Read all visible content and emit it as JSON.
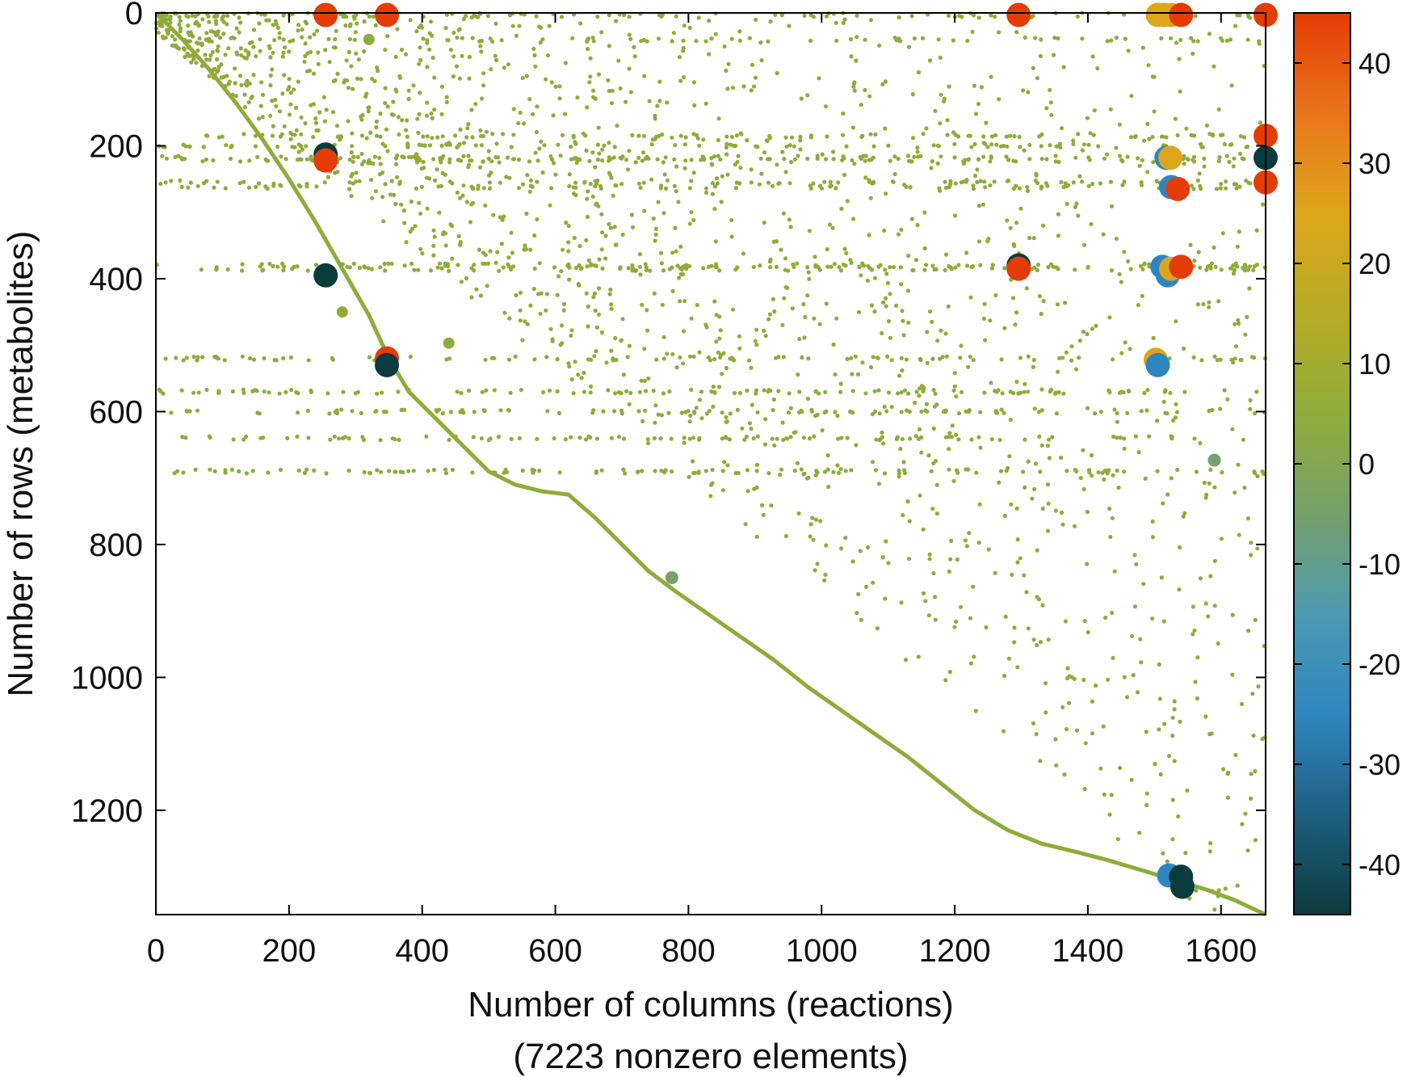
{
  "chart_data": {
    "type": "scatter",
    "title": "",
    "xlabel": "Number of columns (reactions)",
    "xlabel_line2": "(7223 nonzero elements)",
    "ylabel": "Number of rows (metabolites)",
    "xlim": [
      0,
      1667
    ],
    "ylim": [
      1357,
      0
    ],
    "x_ticks": [
      0,
      200,
      400,
      600,
      800,
      1000,
      1200,
      1400,
      1600
    ],
    "y_ticks": [
      0,
      200,
      400,
      600,
      800,
      1000,
      1200
    ],
    "colorbar": {
      "range": [
        -45,
        45
      ],
      "ticks": [
        40,
        30,
        20,
        10,
        0,
        -10,
        -20,
        -30,
        -40
      ],
      "colors": [
        "#0b3b3c",
        "#1d5f80",
        "#2f86bf",
        "#4b9ab1",
        "#76a06c",
        "#8fac3a",
        "#b7ab24",
        "#dda61a",
        "#e9751a",
        "#e53c06"
      ]
    },
    "pattern": "sparse matrix; dense diagonal from (0,0) to (1667,1357) plus scattered small nonzeros",
    "diagonal": [
      [
        0,
        0
      ],
      [
        40,
        40
      ],
      [
        80,
        85
      ],
      [
        120,
        135
      ],
      [
        160,
        190
      ],
      [
        200,
        250
      ],
      [
        240,
        315
      ],
      [
        280,
        385
      ],
      [
        320,
        455
      ],
      [
        350,
        520
      ],
      [
        380,
        570
      ],
      [
        420,
        610
      ],
      [
        460,
        650
      ],
      [
        500,
        690
      ],
      [
        540,
        710
      ],
      [
        580,
        720
      ],
      [
        620,
        725
      ],
      [
        660,
        760
      ],
      [
        700,
        800
      ],
      [
        740,
        840
      ],
      [
        780,
        870
      ],
      [
        830,
        905
      ],
      [
        880,
        940
      ],
      [
        930,
        975
      ],
      [
        980,
        1015
      ],
      [
        1030,
        1050
      ],
      [
        1080,
        1085
      ],
      [
        1130,
        1120
      ],
      [
        1180,
        1160
      ],
      [
        1230,
        1200
      ],
      [
        1280,
        1230
      ],
      [
        1330,
        1250
      ],
      [
        1380,
        1262
      ],
      [
        1430,
        1275
      ],
      [
        1480,
        1290
      ],
      [
        1530,
        1305
      ],
      [
        1580,
        1320
      ],
      [
        1620,
        1335
      ],
      [
        1667,
        1357
      ]
    ],
    "large_points": [
      {
        "x": 255,
        "y": 3,
        "v": 45
      },
      {
        "x": 347,
        "y": 3,
        "v": 45
      },
      {
        "x": 1296,
        "y": 3,
        "v": 45
      },
      {
        "x": 1505,
        "y": 3,
        "v": 25
      },
      {
        "x": 1515,
        "y": 3,
        "v": 25
      },
      {
        "x": 1525,
        "y": 3,
        "v": 25
      },
      {
        "x": 1540,
        "y": 3,
        "v": 45
      },
      {
        "x": 1667,
        "y": 3,
        "v": 45
      },
      {
        "x": 255,
        "y": 213,
        "v": -45
      },
      {
        "x": 255,
        "y": 222,
        "v": 45
      },
      {
        "x": 1518,
        "y": 218,
        "v": -25
      },
      {
        "x": 1524,
        "y": 218,
        "v": 25
      },
      {
        "x": 1667,
        "y": 185,
        "v": 45
      },
      {
        "x": 1667,
        "y": 218,
        "v": -45
      },
      {
        "x": 1667,
        "y": 255,
        "v": 45
      },
      {
        "x": 1525,
        "y": 262,
        "v": -25
      },
      {
        "x": 1535,
        "y": 265,
        "v": 45
      },
      {
        "x": 255,
        "y": 395,
        "v": -45
      },
      {
        "x": 1296,
        "y": 380,
        "v": -45
      },
      {
        "x": 1296,
        "y": 385,
        "v": 45
      },
      {
        "x": 1512,
        "y": 382,
        "v": -25
      },
      {
        "x": 1520,
        "y": 395,
        "v": -25
      },
      {
        "x": 1525,
        "y": 385,
        "v": 25
      },
      {
        "x": 1540,
        "y": 382,
        "v": 45
      },
      {
        "x": 347,
        "y": 520,
        "v": 45
      },
      {
        "x": 347,
        "y": 530,
        "v": -45
      },
      {
        "x": 1502,
        "y": 522,
        "v": 25
      },
      {
        "x": 1505,
        "y": 530,
        "v": -25
      },
      {
        "x": 1522,
        "y": 1298,
        "v": -25
      },
      {
        "x": 1540,
        "y": 1300,
        "v": -45
      },
      {
        "x": 1542,
        "y": 1315,
        "v": -45
      },
      {
        "x": 1590,
        "y": 673,
        "v": -8
      },
      {
        "x": 775,
        "y": 850,
        "v": -5
      },
      {
        "x": 440,
        "y": 497,
        "v": 2
      },
      {
        "x": 280,
        "y": 450,
        "v": 2
      },
      {
        "x": 320,
        "y": 40,
        "v": 2
      }
    ]
  }
}
